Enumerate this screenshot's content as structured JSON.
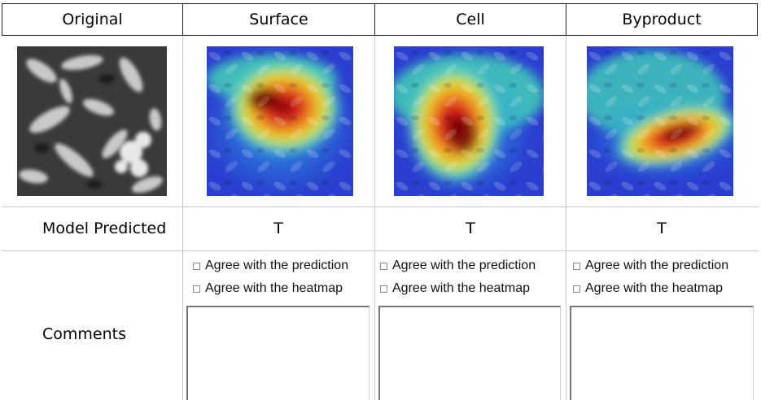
{
  "columns": [
    "Original",
    "Surface",
    "Cell",
    "Byproduct"
  ],
  "rows": {
    "model_predicted_label": "Model Predicted",
    "comments_label": "Comments"
  },
  "predictions": [
    "T",
    "T",
    "T"
  ],
  "options": {
    "agree_prediction": "Agree with the prediction",
    "agree_heatmap": "Agree with the heatmap"
  },
  "images": {
    "original": "sem-micrograph-grayscale",
    "surface": "heatmap-overlay-surface",
    "cell": "heatmap-overlay-cell",
    "byproduct": "heatmap-overlay-byproduct"
  }
}
